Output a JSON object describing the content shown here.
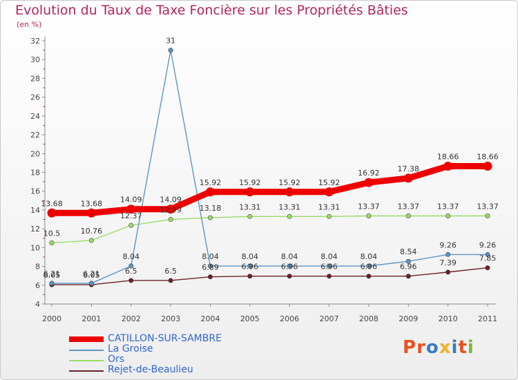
{
  "header": {
    "title": "Evolution du Taux de Taxe Foncière sur les Propriétés Bâties",
    "unit": "(en %)"
  },
  "logo": {
    "text": "Proxiti",
    "colors": [
      "#e8501e",
      "#e8501e",
      "#3a7bc0",
      "#f0b323",
      "#3a7bc0",
      "#e8501e",
      "#7cb342"
    ]
  },
  "chart_data": {
    "type": "line",
    "title": "Evolution du Taux de Taxe Foncière sur les Propriétés Bâties",
    "ylabel": "(en %)",
    "xlabel": "",
    "x": [
      "2000",
      "2001",
      "2002",
      "2003",
      "2004",
      "2005",
      "2006",
      "2007",
      "2008",
      "2009",
      "2010",
      "2011"
    ],
    "ylim": [
      4,
      32
    ],
    "yticks": [
      "4",
      "6",
      "8",
      "10",
      "12",
      "14",
      "16",
      "18",
      "20",
      "22",
      "24",
      "26",
      "28",
      "30",
      "32"
    ],
    "grid": false,
    "legend_position": "bottom-left",
    "series": [
      {
        "name": "CATILLON-SUR-SAMBRE",
        "color": "#ee0000",
        "values": [
          13.68,
          13.68,
          14.09,
          14.09,
          15.92,
          15.92,
          15.92,
          15.92,
          16.92,
          17.38,
          18.66,
          18.66
        ],
        "labels": [
          "13.68",
          "13.68",
          "14.09",
          "14.09",
          "15.92",
          "15.92",
          "15.92",
          "15.92",
          "16.92",
          "17.38",
          "18.66",
          "18.66"
        ]
      },
      {
        "name": "La Groise",
        "color": "#5b94c5",
        "values": [
          6.21,
          6.21,
          8.04,
          31,
          8.04,
          8.04,
          8.04,
          8.04,
          8.04,
          8.54,
          9.26,
          9.26
        ],
        "labels": [
          "6.21",
          "6.21",
          "8.04",
          "31",
          "8.04",
          "8.04",
          "8.04",
          "8.04",
          "8.04",
          "8.54",
          "9.26",
          "9.26"
        ]
      },
      {
        "name": "Ors",
        "color": "#99dd66",
        "values": [
          10.5,
          10.76,
          12.37,
          12.99,
          13.18,
          13.31,
          13.31,
          13.31,
          13.37,
          13.37,
          13.37,
          13.37
        ],
        "labels": [
          "10.5",
          "10.76",
          "12.37",
          "12.99",
          "13.18",
          "13.31",
          "13.31",
          "13.31",
          "13.37",
          "13.37",
          "13.37",
          "13.37"
        ]
      },
      {
        "name": "Rejet-de-Beaulieu",
        "color": "#6b1f24",
        "values": [
          6.05,
          6.05,
          6.5,
          6.5,
          6.89,
          6.96,
          6.96,
          6.96,
          6.96,
          6.96,
          7.39,
          7.85
        ],
        "labels": [
          "6.05",
          "6.05",
          "6.5",
          "6.5",
          "6.89",
          "6.96",
          "6.96",
          "6.96",
          "6.96",
          "6.96",
          "7.39",
          "7.85"
        ]
      }
    ]
  }
}
